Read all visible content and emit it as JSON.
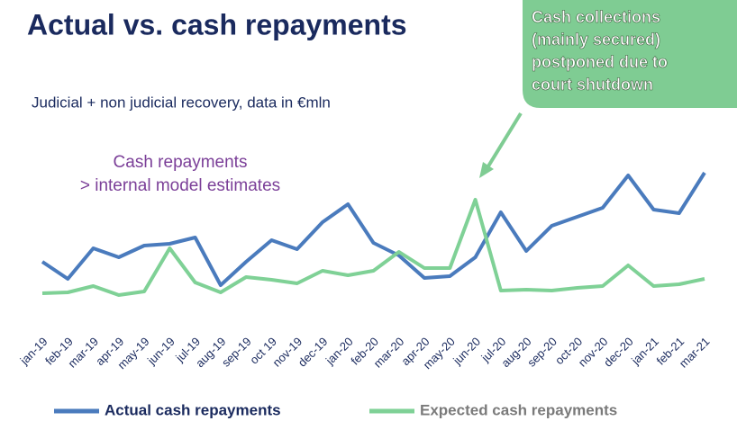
{
  "chart_data": {
    "type": "line",
    "title": "Actual vs. cash repayments",
    "subtitle": "Judicial + non judicial recovery, data in €mln",
    "annotations": [
      [
        "Cash repayments",
        "> internal model estimates"
      ],
      [
        "Cash collections",
        "(mainly secured)",
        "postponed due to",
        "court shutdown"
      ]
    ],
    "categories": [
      "jan-19",
      "feb-19",
      "mar-19",
      "apr-19",
      "may-19",
      "jun-19",
      "jul-19",
      "aug-19",
      "sep-19",
      "oct 19",
      "nov-19",
      "dec-19",
      "jan-20",
      "feb-20",
      "mar-20",
      "apr-20",
      "may-20",
      "jun-20",
      "jul-20",
      "aug-20",
      "sep-20",
      "oct-20",
      "nov-20",
      "dec-20",
      "jan-21",
      "feb-21",
      "mar-21"
    ],
    "series": [
      {
        "name": "Actual cash repayments",
        "color": "#4a7bbd",
        "values": [
          69,
          50,
          84,
          74,
          87,
          89,
          96,
          43,
          69,
          93,
          83,
          113,
          133,
          90,
          76,
          51,
          53,
          74,
          124,
          81,
          109,
          119,
          129,
          165,
          127,
          123,
          168
        ]
      },
      {
        "name": "Expected cash repayments",
        "color": "#7fd196",
        "values": [
          34,
          35,
          42,
          32,
          36,
          84,
          46,
          35,
          52,
          49,
          45,
          59,
          54,
          59,
          80,
          62,
          62,
          138,
          37,
          38,
          37,
          40,
          42,
          65,
          42,
          44,
          50
        ]
      }
    ],
    "ylim": [
      0,
      180
    ]
  }
}
